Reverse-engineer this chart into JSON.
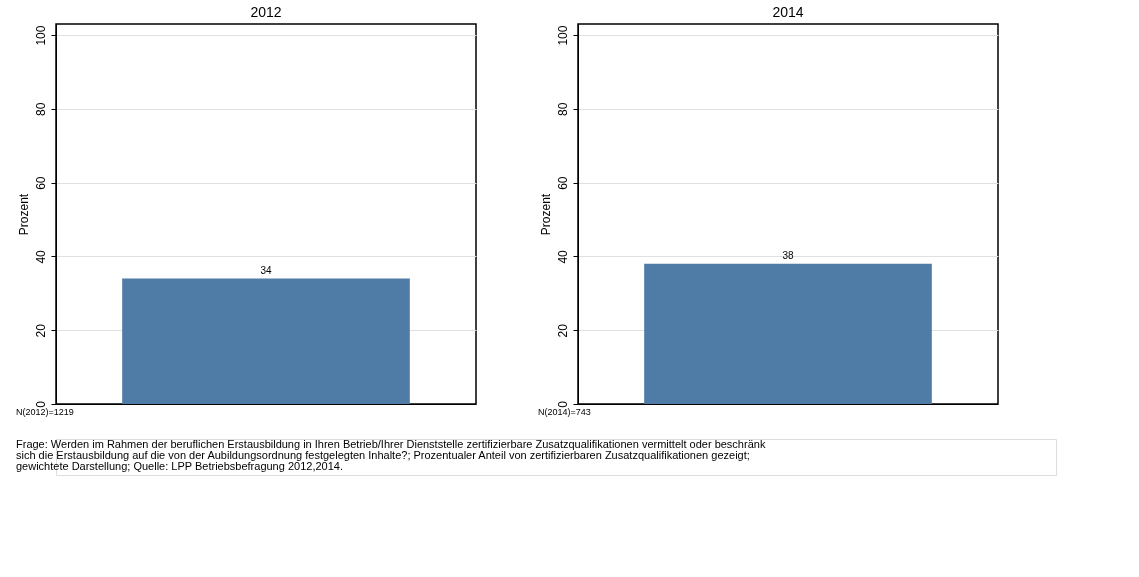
{
  "chart_data": [
    {
      "type": "bar",
      "title": "2012",
      "ylabel": "Prozent",
      "categories": [
        null
      ],
      "values": [
        34
      ],
      "color": "#4f7ca7",
      "data_labels": true,
      "ylim": [
        0,
        103
      ],
      "yticks": [
        0,
        20,
        40,
        60,
        80,
        100
      ],
      "grid": "y",
      "tick_labels": "y",
      "annotations": [
        "N(2012)=1219",
        "Frage: Werden im Rahmen der beruflichen Erstausbildung in Ihren Betrieb/Ihrer Dienststelle zertifizierbare Zusatzqualifikationen vermittelt oder beschränk\nsich die Erstausbildung auf die von der Aubildungsordnung festgelegten Inhalte?; Prozentualer Anteil von zertifizierbaren Zusatzqualifikationen gezeigt;\ngewichtete Darstellung; Quelle: LPP Betriebsbefragung 2012,2014."
      ]
    },
    {
      "type": "bar",
      "title": "2014",
      "ylabel": "Prozent",
      "categories": [
        null
      ],
      "values": [
        38
      ],
      "color": "#4f7ca7",
      "data_labels": true,
      "ylim": [
        0,
        103
      ],
      "yticks": [
        0,
        20,
        40,
        60,
        80,
        100
      ],
      "grid": "y",
      "tick_labels": "y",
      "annotations": [
        "N(2014)=743"
      ]
    }
  ]
}
